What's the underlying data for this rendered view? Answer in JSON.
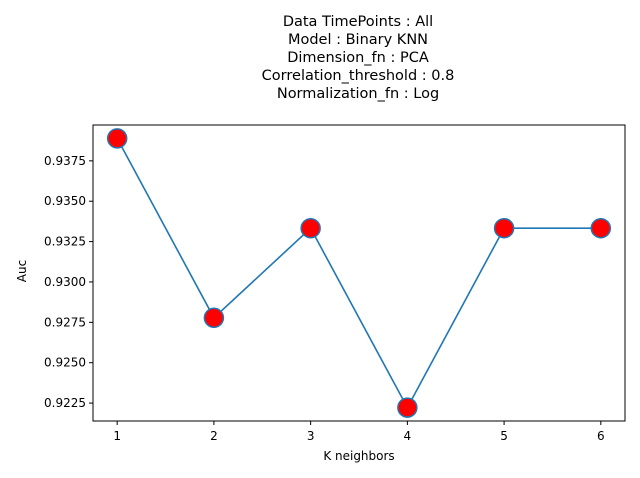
{
  "chart_data": {
    "type": "line",
    "title_lines": [
      "Data TimePoints : All",
      "Model : Binary KNN",
      "Dimension_fn : PCA",
      "Correlation_threshold : 0.8",
      "Normalization_fn : Log"
    ],
    "xlabel": "K neighbors",
    "ylabel": "Auc",
    "x": [
      1,
      2,
      3,
      4,
      5,
      6
    ],
    "y": [
      0.93889,
      0.92778,
      0.93333,
      0.92222,
      0.93333,
      0.93333
    ],
    "x_ticks": [
      1,
      2,
      3,
      4,
      5,
      6
    ],
    "y_ticks": [
      0.9225,
      0.925,
      0.9275,
      0.93,
      0.9325,
      0.935,
      0.9375
    ],
    "y_tick_labels": [
      "0.9225",
      "0.9250",
      "0.9275",
      "0.9300",
      "0.9325",
      "0.9350",
      "0.9375"
    ],
    "xlim": [
      0.75,
      6.25
    ],
    "ylim": [
      0.92139,
      0.93972
    ],
    "grid": false,
    "line_color": "#1f77b4",
    "marker_color": "#ff0000",
    "marker_edge_color": "#1f77b4"
  }
}
